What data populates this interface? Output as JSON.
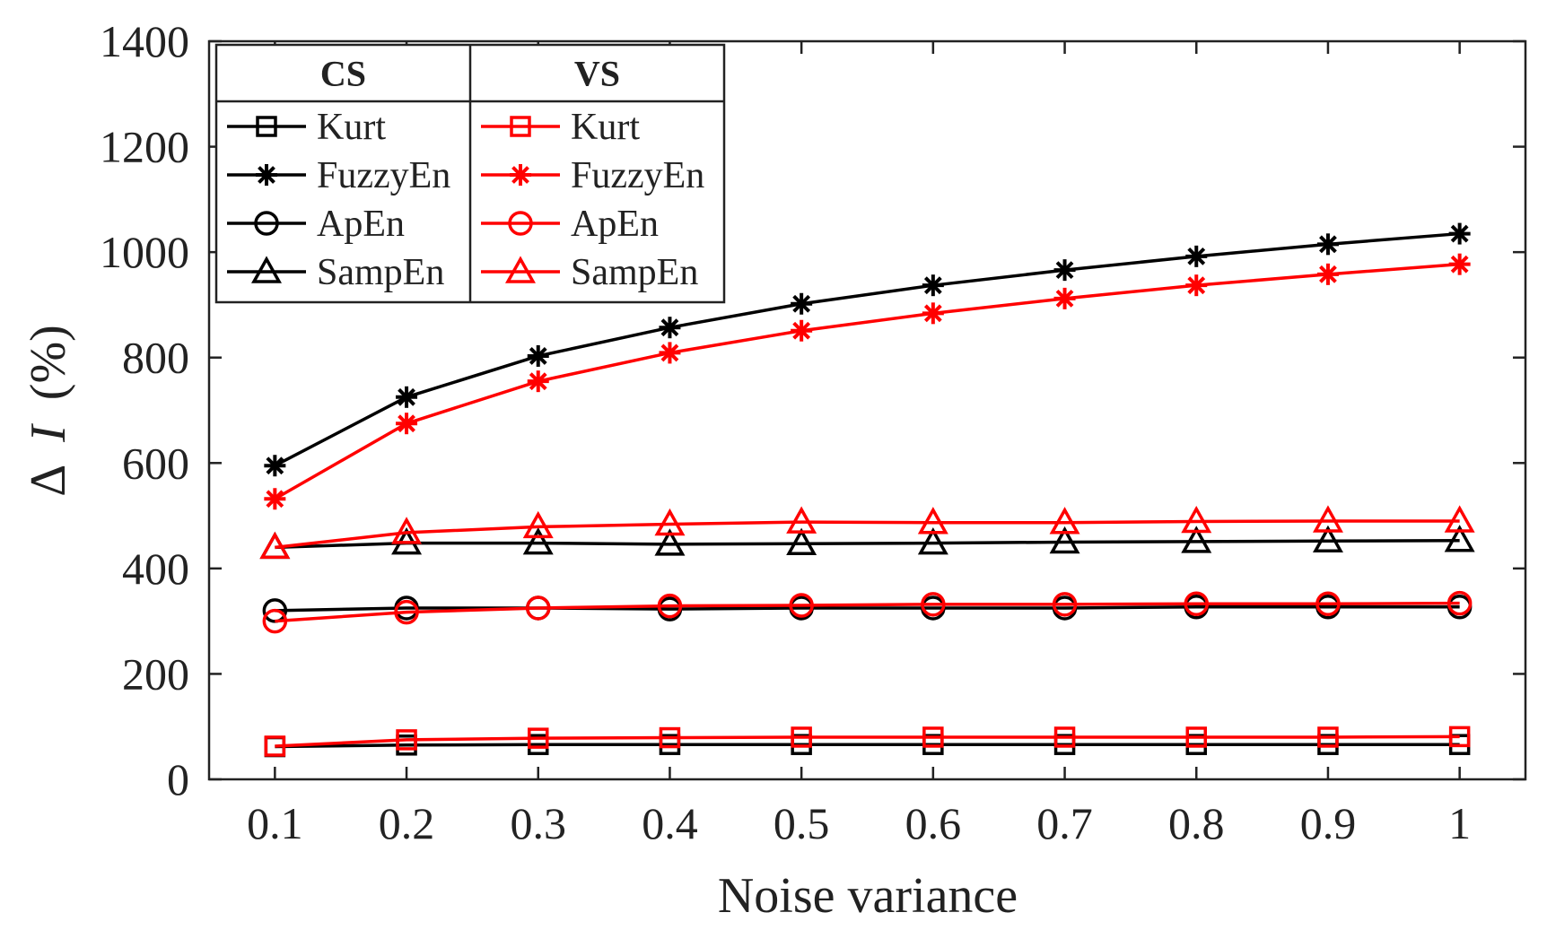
{
  "chart_data": {
    "type": "line",
    "title": "",
    "xlabel": "Noise variance",
    "ylabel_symbol": "Δ",
    "ylabel_var": "I",
    "ylabel_unit": "(%)",
    "x": [
      0.1,
      0.2,
      0.3,
      0.4,
      0.5,
      0.6,
      0.7,
      0.8,
      0.9,
      1
    ],
    "xticks": [
      "0.1",
      "0.2",
      "0.3",
      "0.4",
      "0.5",
      "0.6",
      "0.7",
      "0.8",
      "0.9",
      "1"
    ],
    "xlim": [
      0.05,
      1.05
    ],
    "ylim": [
      0,
      1400
    ],
    "yticks": [
      0,
      200,
      400,
      600,
      800,
      1000,
      1200,
      1400
    ],
    "grid": false,
    "legend": {
      "placement": "top-left",
      "groups": [
        "CS",
        "VS"
      ],
      "entries": [
        "Kurt",
        "FuzzyEn",
        "ApEn",
        "SampEn"
      ]
    },
    "colors": {
      "CS": "#000000",
      "VS": "#ff0000"
    },
    "series": [
      {
        "name": "Kurt",
        "group": "CS",
        "marker": "square",
        "values": [
          62,
          65,
          66,
          66,
          66,
          66,
          66,
          66,
          66,
          66
        ]
      },
      {
        "name": "FuzzyEn",
        "group": "CS",
        "marker": "star",
        "values": [
          595,
          725,
          803,
          857,
          902,
          937,
          966,
          992,
          1015,
          1035
        ]
      },
      {
        "name": "ApEn",
        "group": "CS",
        "marker": "circle",
        "values": [
          320,
          325,
          325,
          323,
          325,
          325,
          325,
          327,
          327,
          327
        ]
      },
      {
        "name": "SampEn",
        "group": "CS",
        "marker": "triangle",
        "values": [
          440,
          448,
          448,
          446,
          447,
          448,
          450,
          451,
          452,
          453
        ]
      },
      {
        "name": "Kurt",
        "group": "VS",
        "marker": "square",
        "values": [
          63,
          75,
          78,
          79,
          80,
          80,
          80,
          80,
          80,
          81
        ]
      },
      {
        "name": "FuzzyEn",
        "group": "VS",
        "marker": "star",
        "values": [
          532,
          675,
          755,
          809,
          851,
          884,
          912,
          937,
          958,
          977
        ]
      },
      {
        "name": "ApEn",
        "group": "VS",
        "marker": "circle",
        "values": [
          300,
          317,
          325,
          329,
          330,
          332,
          332,
          333,
          333,
          334
        ]
      },
      {
        "name": "SampEn",
        "group": "VS",
        "marker": "triangle",
        "values": [
          440,
          468,
          479,
          484,
          488,
          487,
          487,
          489,
          490,
          490
        ]
      }
    ]
  }
}
